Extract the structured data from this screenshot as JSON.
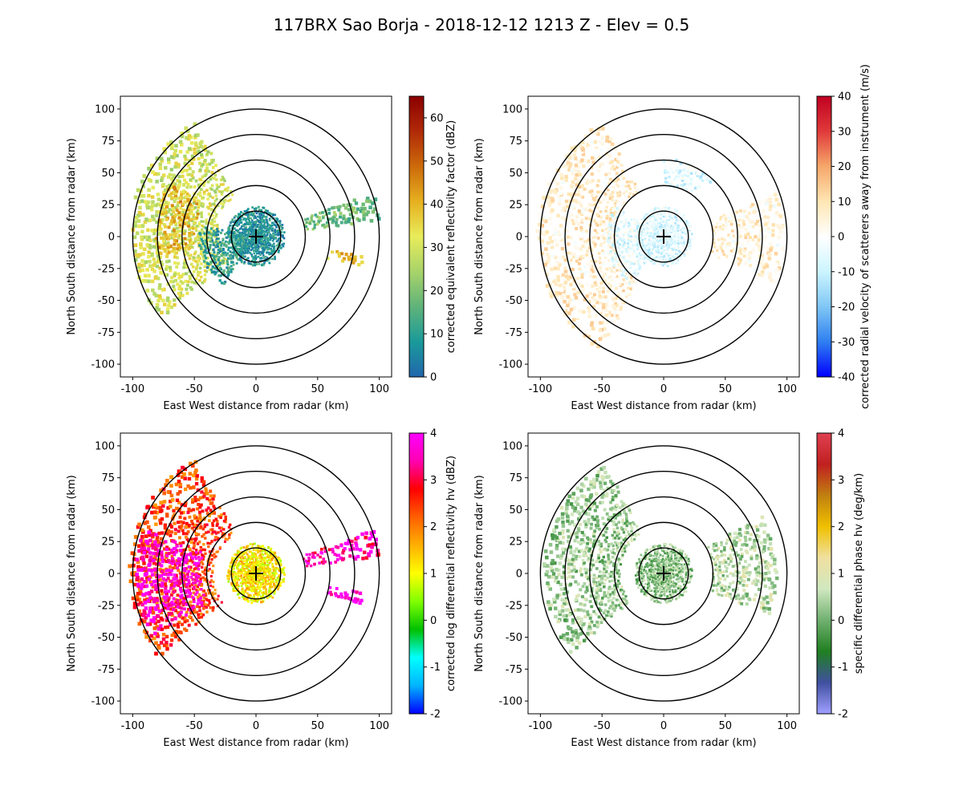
{
  "figure_title": "117BRX Sao Borja - 2018-12-12 1213 Z -  Elev = 0.5",
  "chart_data": [
    {
      "type": "heatmap",
      "panel": "top-left",
      "xlabel": "East West distance from radar (km)",
      "ylabel": "North South distance from radar (km)",
      "xlim": [
        -110,
        110
      ],
      "ylim": [
        -110,
        110
      ],
      "x_ticks": [
        -100,
        -50,
        0,
        50,
        100
      ],
      "y_ticks": [
        100,
        75,
        50,
        25,
        0,
        -25,
        -50,
        -75,
        -100
      ],
      "range_rings_km": [
        20,
        40,
        60,
        80,
        100
      ],
      "radar_position": [
        0,
        0
      ],
      "colorbar": {
        "label": "corrected equivalent reflectivity factor (dBZ)",
        "min": 0,
        "max": 65,
        "ticks": [
          0,
          10,
          20,
          30,
          40,
          50,
          60
        ],
        "colors": [
          "#2166ac",
          "#1a9a9a",
          "#5fb37a",
          "#a8d36a",
          "#e8ec5a",
          "#e6b020",
          "#cc6a0a",
          "#b02a08",
          "#8b0000"
        ]
      },
      "echo_regions": [
        {
          "description": "broad stratiform region to west",
          "az_deg": [
            285,
            330
          ],
          "range_km": [
            35,
            100
          ],
          "value": 30
        },
        {
          "description": "broad stratiform region to west-southwest",
          "az_deg": [
            230,
            285
          ],
          "range_km": [
            30,
            100
          ],
          "value": 30
        },
        {
          "description": "embedded stronger echoes",
          "az_deg": [
            260,
            300
          ],
          "range_km": [
            50,
            80
          ],
          "value": 40
        },
        {
          "description": "weak echoes near radar",
          "az_deg": [
            0,
            360
          ],
          "range_km": [
            0,
            22
          ],
          "value": 8
        },
        {
          "description": "weak echoes extending west-southwest",
          "az_deg": [
            215,
            280
          ],
          "range_km": [
            10,
            45
          ],
          "value": 10
        },
        {
          "description": "band to east-northeast",
          "az_deg": [
            70,
            82
          ],
          "range_km": [
            40,
            100
          ],
          "value": 18
        },
        {
          "description": "cell to east-southeast",
          "az_deg": [
            100,
            106
          ],
          "range_km": [
            60,
            88
          ],
          "value": 38
        }
      ]
    },
    {
      "type": "heatmap",
      "panel": "top-right",
      "xlabel": "East West distance from radar (km)",
      "ylabel": "North South distance from radar (km)",
      "xlim": [
        -110,
        110
      ],
      "ylim": [
        -110,
        110
      ],
      "x_ticks": [
        -100,
        -50,
        0,
        50,
        100
      ],
      "y_ticks": [
        100,
        75,
        50,
        25,
        0,
        -25,
        -50,
        -75,
        -100
      ],
      "range_rings_km": [
        20,
        40,
        60,
        80,
        100
      ],
      "radar_position": [
        0,
        0
      ],
      "colorbar": {
        "label": "corrected radial velocity of scatterers away from instrument (m/s)",
        "min": -40,
        "max": 40,
        "ticks": [
          -40,
          -30,
          -20,
          -10,
          0,
          10,
          20,
          30,
          40
        ],
        "colors": [
          "#0000ff",
          "#2f7ff0",
          "#7fc7f5",
          "#ccf5ff",
          "#ffffff",
          "#ffe6b3",
          "#f6a76a",
          "#e03a3a",
          "#c00020"
        ]
      },
      "echo_regions": [
        {
          "description": "outbound flow west/southwest",
          "az_deg": [
            210,
            330
          ],
          "range_km": [
            40,
            100
          ],
          "value": 6
        },
        {
          "description": "inbound flow near radar",
          "az_deg": [
            0,
            360
          ],
          "range_km": [
            0,
            22
          ],
          "value": -6
        },
        {
          "description": "inbound flow west",
          "az_deg": [
            215,
            300
          ],
          "range_km": [
            15,
            45
          ],
          "value": -5
        },
        {
          "description": "northern echoes",
          "az_deg": [
            0,
            40
          ],
          "range_km": [
            40,
            60
          ],
          "value": -6
        },
        {
          "description": "eastern echoes",
          "az_deg": [
            70,
            110
          ],
          "range_km": [
            40,
            95
          ],
          "value": 5
        }
      ]
    },
    {
      "type": "heatmap",
      "panel": "bottom-left",
      "xlabel": "East West distance from radar (km)",
      "ylabel": "North South distance from radar (km)",
      "xlim": [
        -110,
        110
      ],
      "ylim": [
        -110,
        110
      ],
      "x_ticks": [
        -100,
        -50,
        0,
        50,
        100
      ],
      "y_ticks": [
        100,
        75,
        50,
        25,
        0,
        -25,
        -50,
        -75,
        -100
      ],
      "range_rings_km": [
        20,
        40,
        60,
        80,
        100
      ],
      "radar_position": [
        0,
        0
      ],
      "colorbar": {
        "label": "corrected log differential reflectivity hv (dBZ)",
        "min": -2,
        "max": 4,
        "ticks": [
          -2,
          -1,
          0,
          1,
          2,
          3,
          4
        ],
        "colors": [
          "#0000ff",
          "#00b4ff",
          "#00ffff",
          "#00c000",
          "#80ff00",
          "#ffff00",
          "#ffb000",
          "#ff6000",
          "#ff0000",
          "#ff00b0",
          "#ff00ff"
        ]
      },
      "echo_regions": [
        {
          "description": "broad region to west",
          "az_deg": [
            230,
            330
          ],
          "range_km": [
            35,
            100
          ],
          "value": 2.4
        },
        {
          "description": "embedded high values",
          "az_deg": [
            240,
            290
          ],
          "range_km": [
            45,
            95
          ],
          "value": 3.8
        },
        {
          "description": "mixed values near radar",
          "az_deg": [
            0,
            360
          ],
          "range_km": [
            0,
            22
          ],
          "value": 1.2
        },
        {
          "description": "band to east-northeast",
          "az_deg": [
            70,
            82
          ],
          "range_km": [
            40,
            100
          ],
          "value": 3.5
        },
        {
          "description": "cell to east-southeast",
          "az_deg": [
            100,
            106
          ],
          "range_km": [
            60,
            88
          ],
          "value": 3.9
        }
      ]
    },
    {
      "type": "heatmap",
      "panel": "bottom-right",
      "xlabel": "East West distance from radar (km)",
      "ylabel": "North South distance from radar (km)",
      "xlim": [
        -110,
        110
      ],
      "ylim": [
        -110,
        110
      ],
      "x_ticks": [
        -100,
        -50,
        0,
        50,
        100
      ],
      "y_ticks": [
        100,
        75,
        50,
        25,
        0,
        -25,
        -50,
        -75,
        -100
      ],
      "range_rings_km": [
        20,
        40,
        60,
        80,
        100
      ],
      "radar_position": [
        0,
        0
      ],
      "colorbar": {
        "label": "specific differential phase hv (deg/km)",
        "min": -2,
        "max": 4,
        "ticks": [
          -2,
          -1,
          0,
          1,
          2,
          3,
          4
        ],
        "colors": [
          "#a0a0ff",
          "#4050a0",
          "#208020",
          "#70b070",
          "#d0e8c0",
          "#f0e0a0",
          "#f0c000",
          "#c08010",
          "#c02020",
          "#e04050"
        ]
      },
      "echo_regions": [
        {
          "description": "scattered region to west",
          "az_deg": [
            230,
            330
          ],
          "range_km": [
            35,
            95
          ],
          "value": 0.3
        },
        {
          "description": "weak values near radar",
          "az_deg": [
            0,
            360
          ],
          "range_km": [
            0,
            22
          ],
          "value": 0.2
        },
        {
          "description": "echoes to east",
          "az_deg": [
            60,
            110
          ],
          "range_km": [
            40,
            90
          ],
          "value": 0.5
        }
      ]
    }
  ]
}
